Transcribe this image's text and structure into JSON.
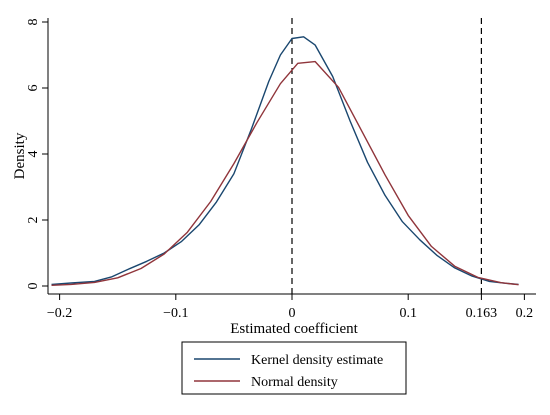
{
  "chart_data": {
    "type": "line",
    "xlabel": "Estimated coefficient",
    "ylabel": "Density",
    "xlim": [
      -0.2,
      0.2
    ],
    "ylim": [
      0,
      8
    ],
    "x_ticks": [
      -0.2,
      -0.1,
      0,
      0.1,
      0.163,
      0.2
    ],
    "x_tick_labels": [
      "-0.2",
      "-0.1",
      "0",
      "0.1",
      "0.163",
      "0.2"
    ],
    "y_ticks": [
      0,
      2,
      4,
      6,
      8
    ],
    "y_tick_labels": [
      "0",
      "2",
      "4",
      "6",
      "8"
    ],
    "vertical_reference_lines": [
      0,
      0.163
    ],
    "reference_line_style": "dashed",
    "grid": false,
    "legend_position": "bottom-center",
    "series": [
      {
        "name": "Kernel density estimate",
        "color": "#1a476f",
        "x": [
          -0.207,
          -0.19,
          -0.17,
          -0.155,
          -0.14,
          -0.125,
          -0.11,
          -0.095,
          -0.08,
          -0.065,
          -0.05,
          -0.035,
          -0.02,
          -0.01,
          0,
          0.01,
          0.02,
          0.035,
          0.05,
          0.065,
          0.08,
          0.095,
          0.11,
          0.125,
          0.14,
          0.155,
          0.17,
          0.185,
          0.195
        ],
        "y": [
          0.05,
          0.09,
          0.14,
          0.28,
          0.52,
          0.75,
          1.0,
          1.35,
          1.85,
          2.55,
          3.4,
          4.75,
          6.2,
          7.0,
          7.5,
          7.55,
          7.3,
          6.35,
          5.0,
          3.75,
          2.75,
          1.95,
          1.4,
          0.92,
          0.55,
          0.3,
          0.14,
          0.08,
          0.05
        ]
      },
      {
        "name": "Normal density",
        "color": "#90353b",
        "x": [
          -0.207,
          -0.19,
          -0.17,
          -0.15,
          -0.13,
          -0.11,
          -0.09,
          -0.07,
          -0.05,
          -0.03,
          -0.01,
          0.005,
          0.02,
          0.04,
          0.06,
          0.08,
          0.1,
          0.12,
          0.14,
          0.16,
          0.18,
          0.195
        ],
        "y": [
          0.02,
          0.05,
          0.11,
          0.25,
          0.53,
          0.97,
          1.63,
          2.56,
          3.71,
          4.96,
          6.13,
          6.75,
          6.8,
          6.02,
          4.7,
          3.37,
          2.14,
          1.2,
          0.6,
          0.26,
          0.1,
          0.04
        ]
      }
    ]
  },
  "legend": {
    "items": [
      {
        "label": "Kernel density estimate",
        "color": "#1a476f"
      },
      {
        "label": "Normal density",
        "color": "#90353b"
      }
    ]
  },
  "colors": {
    "background": "#ffffff",
    "axis": "#000000",
    "reference_line": "#000000"
  }
}
